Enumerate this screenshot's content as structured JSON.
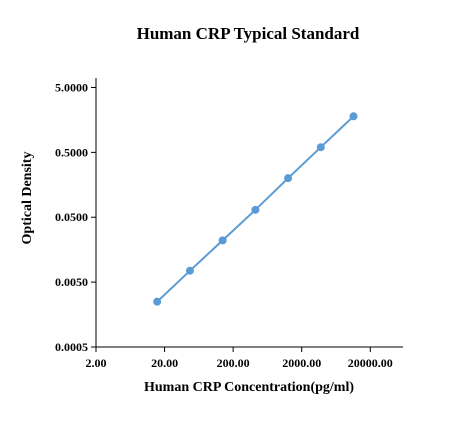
{
  "chart_data": {
    "type": "scatter",
    "title": "Human CRP Typical Standard",
    "xlabel": "Human CRP Concentration(pg/ml)",
    "ylabel": "Optical Density",
    "x_scale": "log",
    "y_scale": "log",
    "xlim": [
      2,
      60000
    ],
    "ylim": [
      0.0005,
      7
    ],
    "x_ticks": [
      2,
      20,
      200,
      2000,
      20000
    ],
    "x_tick_labels": [
      "2.00",
      "20.00",
      "200.00",
      "2000.00",
      "20000.00"
    ],
    "y_ticks": [
      0.0005,
      0.005,
      0.05,
      0.5,
      5
    ],
    "y_tick_labels": [
      "0.0005",
      "0.0050",
      "0.0500",
      "0.5000",
      "5.0000"
    ],
    "grid": false,
    "legend": "none",
    "series": [
      {
        "color": "#5b9bd5",
        "x": [
          15.6,
          46.9,
          140.6,
          421.9,
          1265.6,
          3796.9,
          11390.6
        ],
        "y": [
          0.0025,
          0.0075,
          0.022,
          0.065,
          0.2,
          0.6,
          1.8
        ]
      }
    ]
  }
}
